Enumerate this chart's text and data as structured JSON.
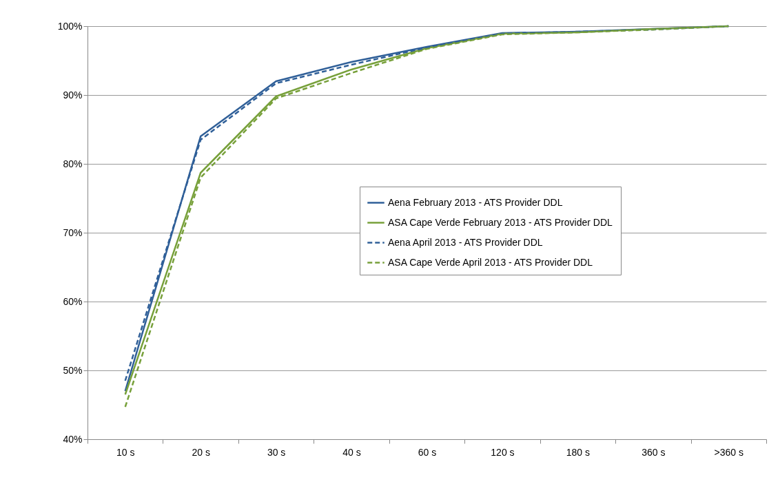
{
  "chart_data": {
    "type": "line",
    "categories": [
      "10 s",
      "20 s",
      "30 s",
      "40 s",
      "60 s",
      "120 s",
      "180 s",
      "360 s",
      ">360 s"
    ],
    "series": [
      {
        "name": "Aena February 2013 - ATS Provider DDL",
        "color": "#2f5f98",
        "line_style": "solid",
        "values": [
          47,
          84,
          92,
          94.8,
          97,
          99,
          99.2,
          99.6,
          100
        ]
      },
      {
        "name": "ASA Cape Verde February 2013 - ATS Provider DDL",
        "color": "#77a03a",
        "line_style": "solid",
        "values": [
          46.5,
          78.7,
          89.8,
          93.7,
          96.8,
          98.9,
          99.1,
          99.6,
          100
        ]
      },
      {
        "name": "Aena April 2013 - ATS Provider DDL",
        "color": "#2f5f98",
        "line_style": "dashed",
        "values": [
          48.5,
          83.5,
          91.7,
          94.4,
          96.9,
          98.9,
          99.2,
          99.5,
          100
        ]
      },
      {
        "name": "ASA Cape Verde April 2013 - ATS Provider DDL",
        "color": "#77a03a",
        "line_style": "dashed",
        "values": [
          44.7,
          78,
          89.5,
          93.2,
          96.7,
          98.8,
          99.1,
          99.5,
          100
        ]
      }
    ],
    "ylim": [
      40,
      100
    ],
    "yticks": [
      {
        "value": 40,
        "label": "40%"
      },
      {
        "value": 50,
        "label": "50%"
      },
      {
        "value": 60,
        "label": "60%"
      },
      {
        "value": 70,
        "label": "70%"
      },
      {
        "value": 80,
        "label": "80%"
      },
      {
        "value": 90,
        "label": "90%"
      },
      {
        "value": 100,
        "label": "100%"
      }
    ],
    "grid": "y",
    "legend": "right",
    "marker": "none"
  }
}
